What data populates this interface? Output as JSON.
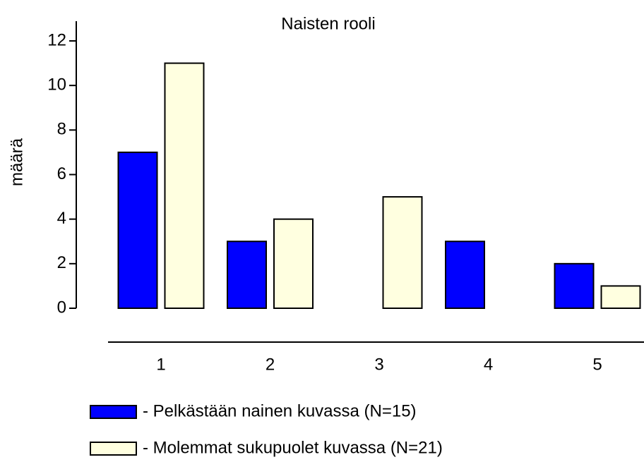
{
  "chart_data": {
    "type": "bar",
    "title": "Naisten rooli",
    "y_label": "määrä",
    "categories": [
      "1",
      "2",
      "3",
      "4",
      "5"
    ],
    "series": [
      {
        "name": "- Pelkästään nainen kuvassa (N=15)",
        "color": "#0000ff",
        "values": [
          7,
          3,
          0,
          3,
          2
        ]
      },
      {
        "name": "- Molemmat sukupuolet kuvassa (N=21)",
        "color": "#ffffe0",
        "values": [
          11,
          4,
          5,
          0,
          1
        ]
      }
    ],
    "ylim": [
      0,
      12
    ],
    "yticks": [
      0,
      2,
      4,
      6,
      8,
      10,
      12
    ],
    "grid": false,
    "legend": "bottom"
  }
}
